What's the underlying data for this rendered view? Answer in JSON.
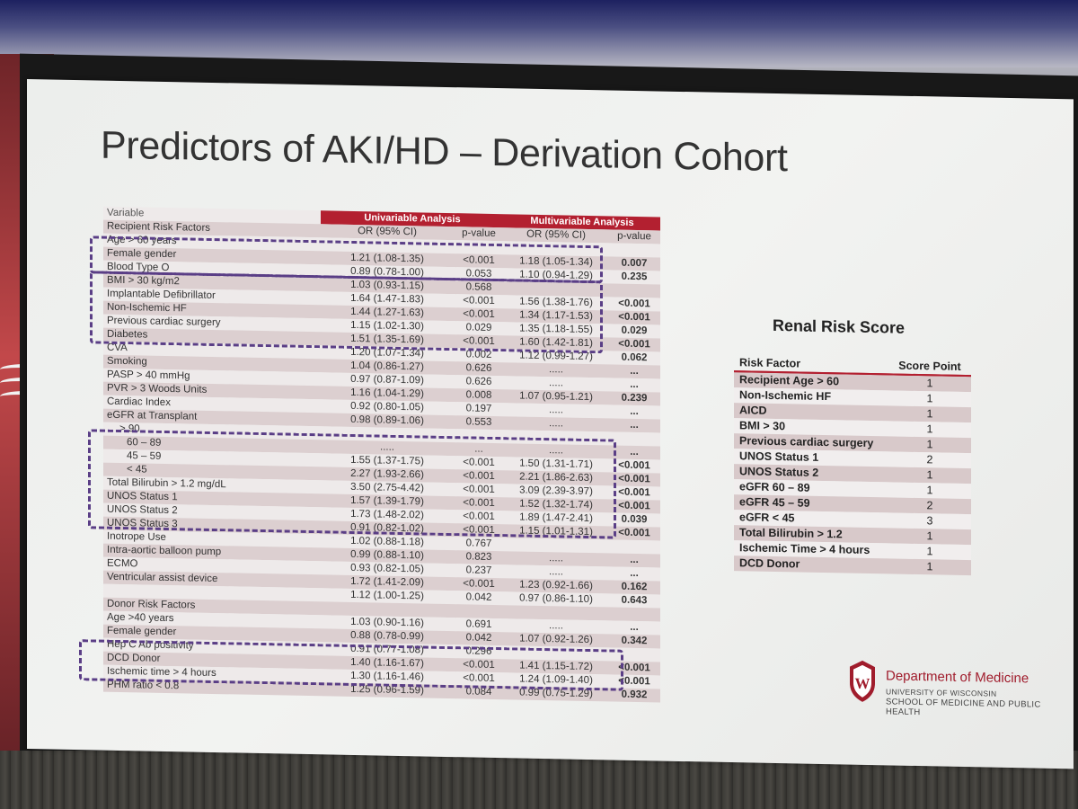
{
  "title": "Predictors of AKI/HD – Derivation Cohort",
  "main_table": {
    "header1": {
      "variable": "Variable",
      "univariable": "Univariable Analysis",
      "multivariable": "Multivariable Analysis"
    },
    "header2": {
      "section": "Recipient Risk Factors",
      "or1": "OR (95% CI)",
      "p1": "p-value",
      "or2": "OR (95% CI)",
      "p2": "p-value"
    },
    "rows": [
      [
        "Age > 60 years",
        "",
        "",
        "",
        ""
      ],
      [
        "Female gender",
        "1.21 (1.08-1.35)",
        "<0.001",
        "1.18 (1.05-1.34)",
        "0.007"
      ],
      [
        "Blood Type O",
        "0.89 (0.78-1.00)",
        "0.053",
        "1.10 (0.94-1.29)",
        "0.235"
      ],
      [
        "BMI > 30 kg/m2",
        "1.03 (0.93-1.15)",
        "0.568",
        "",
        ""
      ],
      [
        "Implantable Defibrillator",
        "1.64 (1.47-1.83)",
        "<0.001",
        "1.56 (1.38-1.76)",
        "<0.001"
      ],
      [
        "Non-Ischemic HF",
        "1.44 (1.27-1.63)",
        "<0.001",
        "1.34 (1.17-1.53)",
        "<0.001"
      ],
      [
        "Previous cardiac surgery",
        "1.15 (1.02-1.30)",
        "0.029",
        "1.35 (1.18-1.55)",
        "0.029"
      ],
      [
        "Diabetes",
        "1.51 (1.35-1.69)",
        "<0.001",
        "1.60 (1.42-1.81)",
        "<0.001"
      ],
      [
        "CVA",
        "1.20 (1.07-1.34)",
        "0.002",
        "1.12 (0.99-1.27)",
        "0.062"
      ],
      [
        "Smoking",
        "1.04 (0.86-1.27)",
        "0.626",
        ".....",
        "..."
      ],
      [
        "PASP > 40 mmHg",
        "0.97 (0.87-1.09)",
        "0.626",
        ".....",
        "..."
      ],
      [
        "PVR  > 3 Woods Units",
        "1.16 (1.04-1.29)",
        "0.008",
        "1.07 (0.95-1.21)",
        "0.239"
      ],
      [
        "Cardiac Index",
        "0.92 (0.80-1.05)",
        "0.197",
        ".....",
        "..."
      ],
      [
        "eGFR at Transplant",
        "0.98 (0.89-1.06)",
        "0.553",
        ".....",
        "..."
      ],
      [
        "> 90",
        "",
        "",
        "",
        ""
      ],
      [
        "60 – 89",
        ".....",
        "...",
        ".....",
        "..."
      ],
      [
        "45 – 59",
        "1.55 (1.37-1.75)",
        "<0.001",
        "1.50 (1.31-1.71)",
        "<0.001"
      ],
      [
        "< 45",
        "2.27 (1.93-2.66)",
        "<0.001",
        "2.21 (1.86-2.63)",
        "<0.001"
      ],
      [
        "Total Bilirubin > 1.2 mg/dL",
        "3.50 (2.75-4.42)",
        "<0.001",
        "3.09 (2.39-3.97)",
        "<0.001"
      ],
      [
        "UNOS Status 1",
        "1.57 (1.39-1.79)",
        "<0.001",
        "1.52 (1.32-1.74)",
        "<0.001"
      ],
      [
        "UNOS Status 2",
        "1.73 (1.48-2.02)",
        "<0.001",
        "1.89 (1.47-2.41)",
        "0.039"
      ],
      [
        "UNOS Status 3",
        "0.91 (0.82-1.02)",
        "<0.001",
        "1.15 (1.01-1.31)",
        "<0.001"
      ],
      [
        "Inotrope Use",
        "1.02 (0.88-1.18)",
        "0.767",
        "",
        ""
      ],
      [
        "Intra-aortic balloon pump",
        "0.99 (0.88-1.10)",
        "0.823",
        ".....",
        "..."
      ],
      [
        "ECMO",
        "0.93 (0.82-1.05)",
        "0.237",
        ".....",
        "..."
      ],
      [
        "Ventricular assist device",
        "1.72 (1.41-2.09)",
        "<0.001",
        "1.23 (0.92-1.66)",
        "0.162"
      ],
      [
        "",
        "1.12 (1.00-1.25)",
        "0.042",
        "0.97 (0.86-1.10)",
        "0.643"
      ],
      [
        "Donor Risk Factors",
        "",
        "",
        "",
        ""
      ],
      [
        "Age >40 years",
        "1.03 (0.90-1.16)",
        "0.691",
        ".....",
        "..."
      ],
      [
        "Female gender",
        "0.88 (0.78-0.99)",
        "0.042",
        "1.07 (0.92-1.26)",
        "0.342"
      ],
      [
        "Hep C Ab positivity",
        "0.91 (0.77-1.08)",
        "0.296",
        "",
        ""
      ],
      [
        "DCD Donor",
        "1.40 (1.16-1.67)",
        "<0.001",
        "1.41 (1.15-1.72)",
        "<0.001"
      ],
      [
        "Ischemic time > 4 hours",
        "1.30 (1.16-1.46)",
        "<0.001",
        "1.24 (1.09-1.40)",
        "<0.001"
      ],
      [
        "PHM ratio < 0.8",
        "1.25 (0.96-1.59)",
        "0.084",
        "0.99 (0.75-1.29)",
        "0.932"
      ]
    ]
  },
  "renal_risk": {
    "title": "Renal Risk Score",
    "col_factor": "Risk Factor",
    "col_score": "Score Point",
    "rows": [
      [
        "Recipient Age > 60",
        "1"
      ],
      [
        "Non-Ischemic HF",
        "1"
      ],
      [
        "AICD",
        "1"
      ],
      [
        "BMI > 30",
        "1"
      ],
      [
        "Previous cardiac surgery",
        "1"
      ],
      [
        "UNOS Status 1",
        "2"
      ],
      [
        "UNOS Status 2",
        "1"
      ],
      [
        "eGFR 60 – 89",
        "1"
      ],
      [
        "eGFR 45 – 59",
        "2"
      ],
      [
        "eGFR < 45",
        "3"
      ],
      [
        "Total Bilirubin > 1.2",
        "1"
      ],
      [
        "Ischemic Time > 4 hours",
        "1"
      ],
      [
        "DCD Donor",
        "1"
      ]
    ]
  },
  "branding": {
    "department": "Department of Medicine",
    "university": "UNIVERSITY OF WISCONSIN",
    "school": "SCHOOL OF MEDICINE AND PUBLIC HEALTH",
    "logo_letter": "W",
    "colors": {
      "accent": "#b32030",
      "highlight": "#5a3e86"
    }
  }
}
